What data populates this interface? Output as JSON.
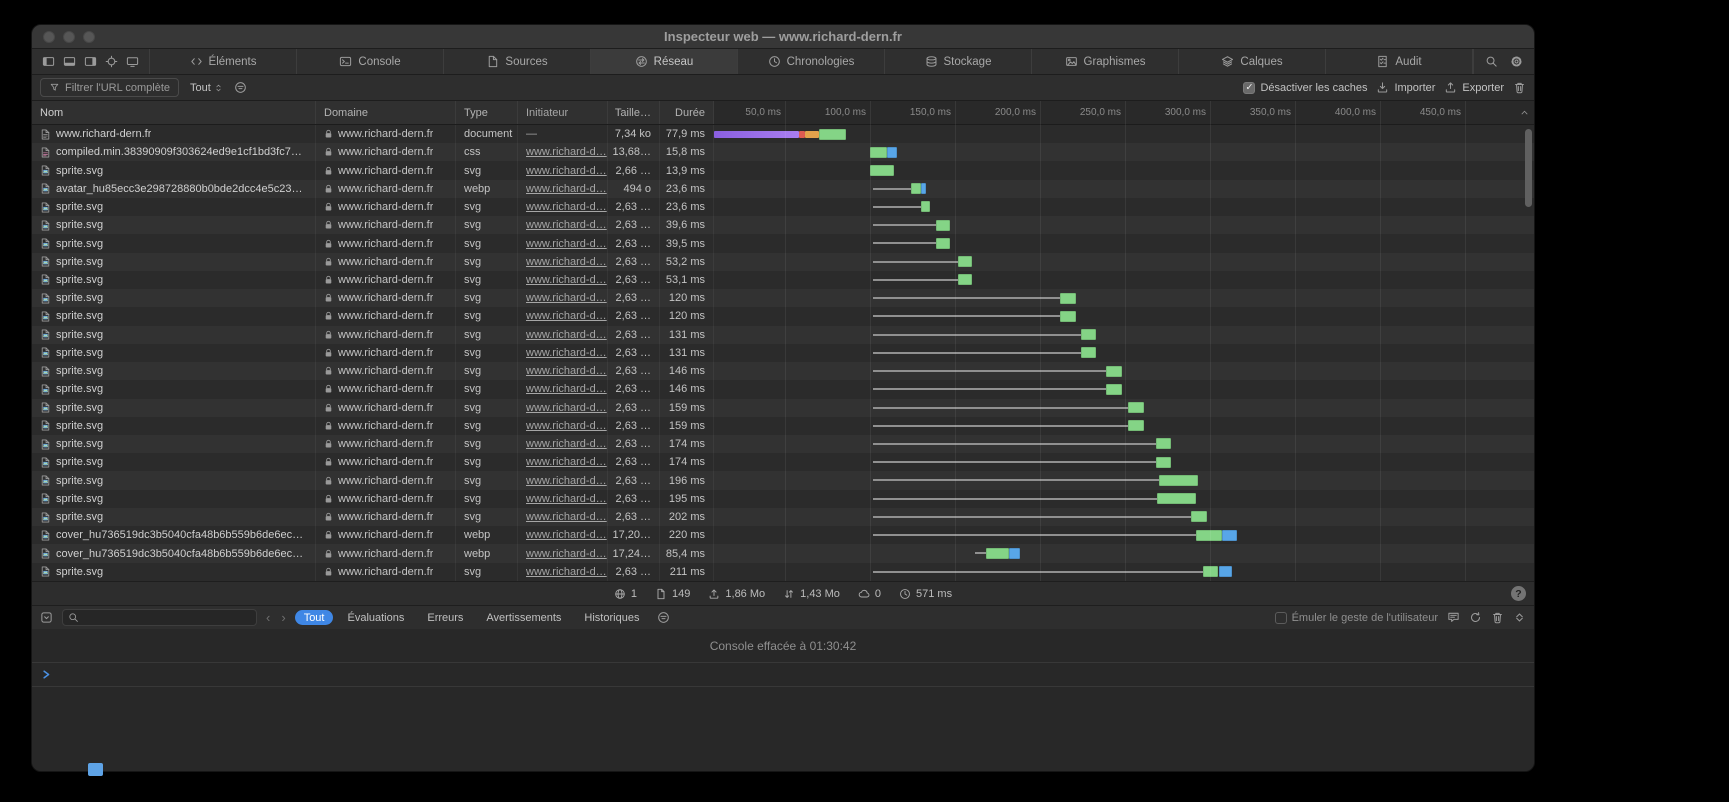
{
  "window": {
    "title": "Inspecteur web — www.richard-dern.fr"
  },
  "toolbar": {
    "tabs": [
      {
        "label": "Éléments",
        "icon": "elements-icon",
        "active": false
      },
      {
        "label": "Console",
        "icon": "console-icon",
        "active": false
      },
      {
        "label": "Sources",
        "icon": "sources-icon",
        "active": false
      },
      {
        "label": "Réseau",
        "icon": "network-icon",
        "active": true
      },
      {
        "label": "Chronologies",
        "icon": "timelines-icon",
        "active": false
      },
      {
        "label": "Stockage",
        "icon": "storage-icon",
        "active": false
      },
      {
        "label": "Graphismes",
        "icon": "graphics-icon",
        "active": false
      },
      {
        "label": "Calques",
        "icon": "layers-icon",
        "active": false
      },
      {
        "label": "Audit",
        "icon": "audit-icon",
        "active": false
      }
    ]
  },
  "network_toolbar": {
    "filter_placeholder": "Filtrer l'URL complète",
    "scope_popup": "Tout",
    "disable_caches": {
      "label": "Désactiver les caches",
      "checked": true,
      "checkmark": "✓"
    },
    "import_label": "Importer",
    "export_label": "Exporter"
  },
  "table": {
    "columns": {
      "name": "Nom",
      "domain": "Domaine",
      "type": "Type",
      "initiator": "Initiateur",
      "size": "Taille…",
      "duration": "Durée"
    },
    "ruler_ticks": [
      "50,0 ms",
      "100,0 ms",
      "150,0 ms",
      "200,0 ms",
      "250,0 ms",
      "300,0 ms",
      "350,0 ms",
      "400,0 ms",
      "450,0 ms"
    ],
    "rows": [
      {
        "name": "www.richard-dern.fr",
        "icon": "file-document-icon",
        "domain": "www.richard-dern.fr",
        "type": "document",
        "initiator": "—",
        "initiator_link": false,
        "size": "7,34 ko",
        "duration": "77,9 ms",
        "waterfall": [
          [
            "purple",
            8,
            58
          ],
          [
            "red",
            58,
            62
          ],
          [
            "orange",
            62,
            70
          ],
          [
            "green",
            70,
            86
          ]
        ]
      },
      {
        "name": "compiled.min.38390909f303624ed9e1cf1bd3fc71e…",
        "icon": "file-css-icon",
        "domain": "www.richard-dern.fr",
        "type": "css",
        "initiator": "www.richard-d…",
        "initiator_link": true,
        "size": "13,68…",
        "duration": "15,8 ms",
        "waterfall": [
          [
            "green",
            100,
            110
          ],
          [
            "blue",
            110,
            116
          ]
        ]
      },
      {
        "name": "sprite.svg",
        "icon": "file-image-icon",
        "domain": "www.richard-dern.fr",
        "type": "svg",
        "initiator": "www.richard-d…",
        "initiator_link": true,
        "size": "2,66 …",
        "duration": "13,9 ms",
        "waterfall": [
          [
            "green",
            100,
            114
          ]
        ]
      },
      {
        "name": "avatar_hu85ecc3e298728880b0bde2dcc4e5c230_…",
        "icon": "file-image-icon",
        "domain": "www.richard-dern.fr",
        "type": "webp",
        "initiator": "www.richard-d…",
        "initiator_link": true,
        "size": "494 o",
        "duration": "23,6 ms",
        "waterfall": [
          [
            "line",
            102,
            124
          ],
          [
            "green",
            124,
            130
          ],
          [
            "blue",
            130,
            133
          ]
        ]
      },
      {
        "name": "sprite.svg",
        "icon": "file-image-icon",
        "domain": "www.richard-dern.fr",
        "type": "svg",
        "initiator": "www.richard-d…",
        "initiator_link": true,
        "size": "2,63 …",
        "duration": "23,6 ms",
        "waterfall": [
          [
            "line",
            102,
            130
          ],
          [
            "green",
            130,
            135
          ]
        ]
      },
      {
        "name": "sprite.svg",
        "icon": "file-image-icon",
        "domain": "www.richard-dern.fr",
        "type": "svg",
        "initiator": "www.richard-d…",
        "initiator_link": true,
        "size": "2,63 …",
        "duration": "39,6 ms",
        "waterfall": [
          [
            "line",
            102,
            139
          ],
          [
            "green",
            139,
            147
          ]
        ]
      },
      {
        "name": "sprite.svg",
        "icon": "file-image-icon",
        "domain": "www.richard-dern.fr",
        "type": "svg",
        "initiator": "www.richard-d…",
        "initiator_link": true,
        "size": "2,63 …",
        "duration": "39,5 ms",
        "waterfall": [
          [
            "line",
            102,
            139
          ],
          [
            "green",
            139,
            147
          ]
        ]
      },
      {
        "name": "sprite.svg",
        "icon": "file-image-icon",
        "domain": "www.richard-dern.fr",
        "type": "svg",
        "initiator": "www.richard-d…",
        "initiator_link": true,
        "size": "2,63 …",
        "duration": "53,2 ms",
        "waterfall": [
          [
            "line",
            102,
            152
          ],
          [
            "green",
            152,
            160
          ]
        ]
      },
      {
        "name": "sprite.svg",
        "icon": "file-image-icon",
        "domain": "www.richard-dern.fr",
        "type": "svg",
        "initiator": "www.richard-d…",
        "initiator_link": true,
        "size": "2,63 …",
        "duration": "53,1 ms",
        "waterfall": [
          [
            "line",
            102,
            152
          ],
          [
            "green",
            152,
            160
          ]
        ]
      },
      {
        "name": "sprite.svg",
        "icon": "file-image-icon",
        "domain": "www.richard-dern.fr",
        "type": "svg",
        "initiator": "www.richard-d…",
        "initiator_link": true,
        "size": "2,63 …",
        "duration": "120 ms",
        "waterfall": [
          [
            "line",
            102,
            212
          ],
          [
            "green",
            212,
            221
          ]
        ]
      },
      {
        "name": "sprite.svg",
        "icon": "file-image-icon",
        "domain": "www.richard-dern.fr",
        "type": "svg",
        "initiator": "www.richard-d…",
        "initiator_link": true,
        "size": "2,63 …",
        "duration": "120 ms",
        "waterfall": [
          [
            "line",
            102,
            212
          ],
          [
            "green",
            212,
            221
          ]
        ]
      },
      {
        "name": "sprite.svg",
        "icon": "file-image-icon",
        "domain": "www.richard-dern.fr",
        "type": "svg",
        "initiator": "www.richard-d…",
        "initiator_link": true,
        "size": "2,63 …",
        "duration": "131 ms",
        "waterfall": [
          [
            "line",
            102,
            224
          ],
          [
            "green",
            224,
            233
          ]
        ]
      },
      {
        "name": "sprite.svg",
        "icon": "file-image-icon",
        "domain": "www.richard-dern.fr",
        "type": "svg",
        "initiator": "www.richard-d…",
        "initiator_link": true,
        "size": "2,63 …",
        "duration": "131 ms",
        "waterfall": [
          [
            "line",
            102,
            224
          ],
          [
            "green",
            224,
            233
          ]
        ]
      },
      {
        "name": "sprite.svg",
        "icon": "file-image-icon",
        "domain": "www.richard-dern.fr",
        "type": "svg",
        "initiator": "www.richard-d…",
        "initiator_link": true,
        "size": "2,63 …",
        "duration": "146 ms",
        "waterfall": [
          [
            "line",
            102,
            239
          ],
          [
            "green",
            239,
            248
          ]
        ]
      },
      {
        "name": "sprite.svg",
        "icon": "file-image-icon",
        "domain": "www.richard-dern.fr",
        "type": "svg",
        "initiator": "www.richard-d…",
        "initiator_link": true,
        "size": "2,63 …",
        "duration": "146 ms",
        "waterfall": [
          [
            "line",
            102,
            239
          ],
          [
            "green",
            239,
            248
          ]
        ]
      },
      {
        "name": "sprite.svg",
        "icon": "file-image-icon",
        "domain": "www.richard-dern.fr",
        "type": "svg",
        "initiator": "www.richard-d…",
        "initiator_link": true,
        "size": "2,63 …",
        "duration": "159 ms",
        "waterfall": [
          [
            "line",
            102,
            252
          ],
          [
            "green",
            252,
            261
          ]
        ]
      },
      {
        "name": "sprite.svg",
        "icon": "file-image-icon",
        "domain": "www.richard-dern.fr",
        "type": "svg",
        "initiator": "www.richard-d…",
        "initiator_link": true,
        "size": "2,63 …",
        "duration": "159 ms",
        "waterfall": [
          [
            "line",
            102,
            252
          ],
          [
            "green",
            252,
            261
          ]
        ]
      },
      {
        "name": "sprite.svg",
        "icon": "file-image-icon",
        "domain": "www.richard-dern.fr",
        "type": "svg",
        "initiator": "www.richard-d…",
        "initiator_link": true,
        "size": "2,63 …",
        "duration": "174 ms",
        "waterfall": [
          [
            "line",
            102,
            268
          ],
          [
            "green",
            268,
            277
          ]
        ]
      },
      {
        "name": "sprite.svg",
        "icon": "file-image-icon",
        "domain": "www.richard-dern.fr",
        "type": "svg",
        "initiator": "www.richard-d…",
        "initiator_link": true,
        "size": "2,63 …",
        "duration": "174 ms",
        "waterfall": [
          [
            "line",
            102,
            268
          ],
          [
            "green",
            268,
            277
          ]
        ]
      },
      {
        "name": "sprite.svg",
        "icon": "file-image-icon",
        "domain": "www.richard-dern.fr",
        "type": "svg",
        "initiator": "www.richard-d…",
        "initiator_link": true,
        "size": "2,63 …",
        "duration": "196 ms",
        "waterfall": [
          [
            "line",
            102,
            270
          ],
          [
            "green",
            270,
            293
          ]
        ]
      },
      {
        "name": "sprite.svg",
        "icon": "file-image-icon",
        "domain": "www.richard-dern.fr",
        "type": "svg",
        "initiator": "www.richard-d…",
        "initiator_link": true,
        "size": "2,63 …",
        "duration": "195 ms",
        "waterfall": [
          [
            "line",
            102,
            269
          ],
          [
            "green",
            269,
            292
          ]
        ]
      },
      {
        "name": "sprite.svg",
        "icon": "file-image-icon",
        "domain": "www.richard-dern.fr",
        "type": "svg",
        "initiator": "www.richard-d…",
        "initiator_link": true,
        "size": "2,63 …",
        "duration": "202 ms",
        "waterfall": [
          [
            "line",
            102,
            289
          ],
          [
            "green",
            289,
            298
          ]
        ]
      },
      {
        "name": "cover_hu736519dc3b5040cfa48b6b559b6de6ec_1…",
        "icon": "file-image-icon",
        "domain": "www.richard-dern.fr",
        "type": "webp",
        "initiator": "www.richard-d…",
        "initiator_link": true,
        "size": "17,20…",
        "duration": "220 ms",
        "waterfall": [
          [
            "line",
            102,
            292
          ],
          [
            "green",
            292,
            307
          ],
          [
            "blue",
            307,
            316
          ]
        ]
      },
      {
        "name": "cover_hu736519dc3b5040cfa48b6b559b6de6ec_…",
        "icon": "file-image-icon",
        "domain": "www.richard-dern.fr",
        "type": "webp",
        "initiator": "www.richard-d…",
        "initiator_link": true,
        "size": "17,24…",
        "duration": "85,4 ms",
        "waterfall": [
          [
            "line",
            162,
            168
          ],
          [
            "green",
            168,
            182
          ],
          [
            "blue",
            182,
            188
          ]
        ]
      },
      {
        "name": "sprite.svg",
        "icon": "file-image-icon",
        "domain": "www.richard-dern.fr",
        "type": "svg",
        "initiator": "www.richard-d…",
        "initiator_link": true,
        "size": "2,63 …",
        "duration": "211 ms",
        "waterfall": [
          [
            "line",
            102,
            296
          ],
          [
            "green",
            296,
            305
          ],
          [
            "blue",
            305,
            313
          ]
        ]
      }
    ]
  },
  "status_bar": {
    "domains": "1",
    "resources": "149",
    "transferred": "1,86 Mo",
    "size": "1,43 Mo",
    "cached": "0",
    "load_time": "571 ms",
    "help_label": "?"
  },
  "console": {
    "filters": [
      "Tout",
      "Évaluations",
      "Erreurs",
      "Avertissements",
      "Historiques"
    ],
    "active_filter": "Tout",
    "prev_glyph": "‹",
    "next_glyph": "›",
    "emulate_user_gesture": {
      "label": "Émuler le geste de l'utilisateur",
      "checked": false
    },
    "cleared_message": "Console effacée à 01:30:42"
  },
  "colors": {
    "accent_blue": "#3f87e5",
    "bar_green": "#84d486",
    "bar_blue": "#58a6e8",
    "bar_purple": "#a06ee0",
    "bar_orange": "#e2a24b",
    "bar_red": "#dd5b51"
  }
}
